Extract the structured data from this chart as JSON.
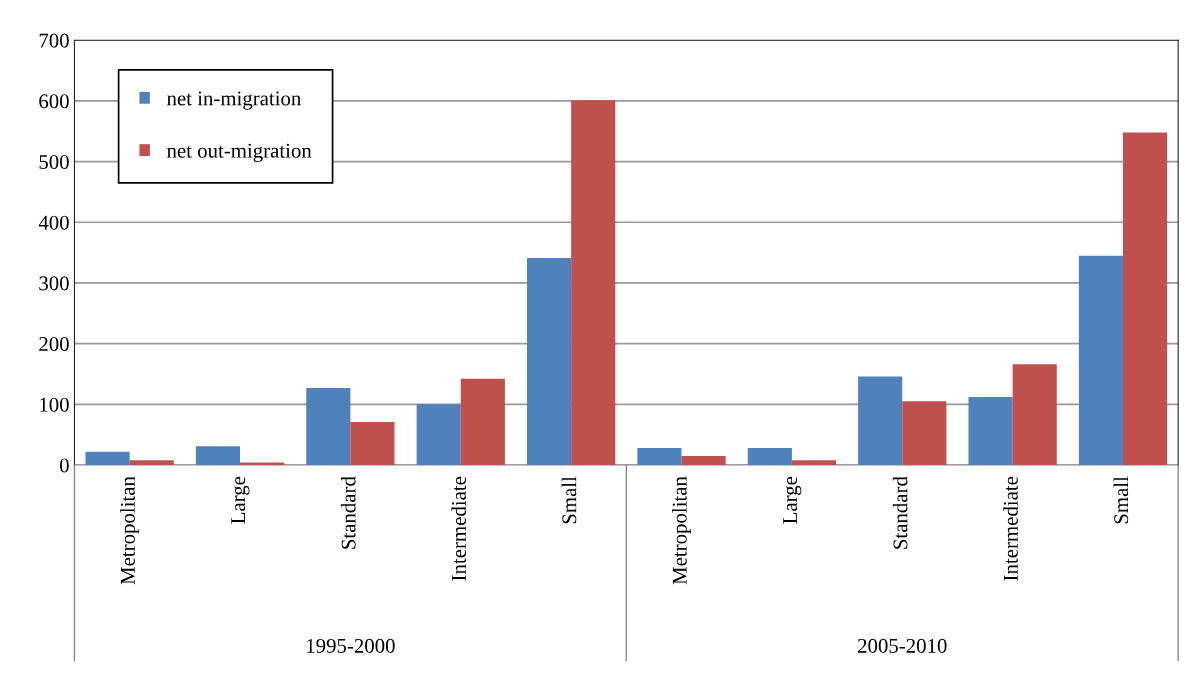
{
  "chart_data": {
    "type": "bar",
    "categories": [
      "Metropolitan",
      "Large",
      "Standard",
      "Intermediate",
      "Small",
      "Metropolitan",
      "Large",
      "Standard",
      "Intermediate",
      "Small"
    ],
    "series": [
      {
        "name": "net in-migration",
        "color": "#4f81bd",
        "values": [
          22,
          31,
          127,
          100,
          341,
          28,
          28,
          146,
          112,
          345
        ]
      },
      {
        "name": "net out-migration",
        "color": "#c0504d",
        "values": [
          8,
          4,
          71,
          142,
          601,
          15,
          8,
          105,
          166,
          548
        ]
      }
    ],
    "annotations": [
      "1995-2000",
      "2005-2010"
    ],
    "ylim": [
      0,
      700
    ],
    "yticks": [
      0,
      100,
      200,
      300,
      400,
      500,
      600,
      700
    ],
    "grid": "y",
    "legend": "top left"
  }
}
